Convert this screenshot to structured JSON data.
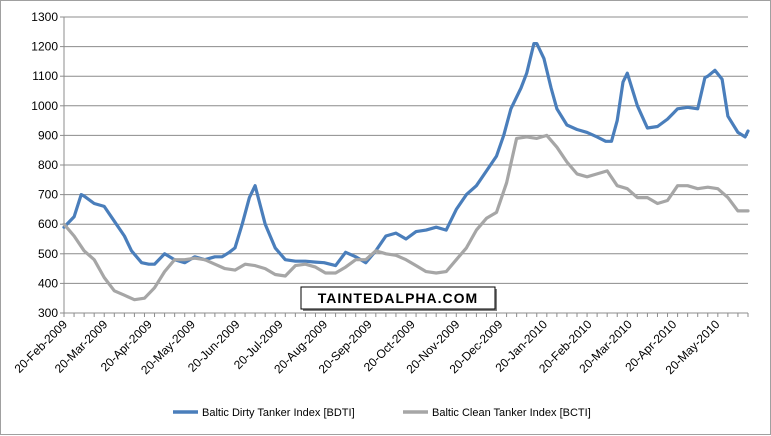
{
  "chart_data": {
    "type": "line",
    "title": "",
    "xlabel": "",
    "ylabel": "",
    "ylim": [
      300,
      1300
    ],
    "yticks": [
      300,
      400,
      500,
      600,
      700,
      800,
      900,
      1000,
      1100,
      1200,
      1300
    ],
    "xlim": [
      "2009-02-20",
      "2010-06-11"
    ],
    "xtick_dates": [
      "2009-02-20",
      "2009-03-20",
      "2009-04-20",
      "2009-05-20",
      "2009-06-20",
      "2009-07-20",
      "2009-08-20",
      "2009-09-20",
      "2009-10-20",
      "2009-11-20",
      "2009-12-20",
      "2010-01-20",
      "2010-02-20",
      "2010-03-20",
      "2010-04-20",
      "2010-05-20"
    ],
    "xtick_labels": [
      "20-Feb-2009",
      "20-Mar-2009",
      "20-Apr-2009",
      "20-May-2009",
      "20-Jun-2009",
      "20-Jul-2009",
      "20-Aug-2009",
      "20-Sep-2009",
      "20-Oct-2009",
      "20-Nov-2009",
      "20-Dec-2009",
      "20-Jan-2010",
      "20-Feb-2010",
      "20-Mar-2010",
      "20-Apr-2010",
      "20-May-2010"
    ],
    "grid": "horizontal",
    "legend_position": "bottom",
    "watermark": "TAINTEDALPHA.COM",
    "series": [
      {
        "name": "Baltic Dirty Tanker Index [BDTI]",
        "color": "#4a7ebb",
        "x": [
          "2009-02-20",
          "2009-02-27",
          "2009-03-04",
          "2009-03-06",
          "2009-03-13",
          "2009-03-20",
          "2009-03-27",
          "2009-04-03",
          "2009-04-08",
          "2009-04-15",
          "2009-04-20",
          "2009-04-24",
          "2009-05-01",
          "2009-05-08",
          "2009-05-15",
          "2009-05-22",
          "2009-05-29",
          "2009-06-05",
          "2009-06-10",
          "2009-06-15",
          "2009-06-19",
          "2009-06-24",
          "2009-06-29",
          "2009-07-03",
          "2009-07-10",
          "2009-07-17",
          "2009-07-24",
          "2009-07-31",
          "2009-08-07",
          "2009-08-14",
          "2009-08-20",
          "2009-08-28",
          "2009-09-04",
          "2009-09-11",
          "2009-09-18",
          "2009-09-25",
          "2009-10-02",
          "2009-10-09",
          "2009-10-16",
          "2009-10-23",
          "2009-10-30",
          "2009-11-06",
          "2009-11-13",
          "2009-11-20",
          "2009-11-27",
          "2009-12-04",
          "2009-12-11",
          "2009-12-18",
          "2009-12-23",
          "2009-12-28",
          "2010-01-04",
          "2010-01-08",
          "2010-01-13",
          "2010-01-15",
          "2010-01-20",
          "2010-01-25",
          "2010-01-29",
          "2010-02-05",
          "2010-02-12",
          "2010-02-19",
          "2010-02-26",
          "2010-03-04",
          "2010-03-08",
          "2010-03-12",
          "2010-03-16",
          "2010-03-19",
          "2010-03-26",
          "2010-04-02",
          "2010-04-09",
          "2010-04-16",
          "2010-04-20",
          "2010-04-23",
          "2010-04-30",
          "2010-05-07",
          "2010-05-12",
          "2010-05-14",
          "2010-05-19",
          "2010-05-24",
          "2010-05-28",
          "2010-06-04",
          "2010-06-09",
          "2010-06-11"
        ],
        "y": [
          590,
          625,
          700,
          695,
          670,
          660,
          610,
          560,
          510,
          470,
          465,
          465,
          500,
          480,
          470,
          490,
          480,
          490,
          490,
          505,
          520,
          600,
          690,
          730,
          600,
          520,
          480,
          475,
          475,
          472,
          470,
          460,
          505,
          490,
          470,
          510,
          560,
          570,
          550,
          575,
          580,
          590,
          580,
          650,
          700,
          730,
          780,
          830,
          900,
          990,
          1060,
          1110,
          1210,
          1210,
          1160,
          1060,
          990,
          935,
          920,
          910,
          895,
          880,
          880,
          950,
          1080,
          1110,
          1000,
          925,
          930,
          955,
          975,
          990,
          995,
          990,
          1095,
          1100,
          1120,
          1090,
          965,
          910,
          895,
          915
        ]
      },
      {
        "name": "Baltic Clean Tanker Index [BCTI]",
        "color": "#a6a6a6",
        "x": [
          "2009-02-20",
          "2009-02-27",
          "2009-03-06",
          "2009-03-13",
          "2009-03-20",
          "2009-03-27",
          "2009-04-03",
          "2009-04-10",
          "2009-04-17",
          "2009-04-24",
          "2009-05-01",
          "2009-05-08",
          "2009-05-15",
          "2009-05-22",
          "2009-05-29",
          "2009-06-05",
          "2009-06-12",
          "2009-06-19",
          "2009-06-26",
          "2009-07-03",
          "2009-07-10",
          "2009-07-17",
          "2009-07-24",
          "2009-07-31",
          "2009-08-07",
          "2009-08-14",
          "2009-08-21",
          "2009-08-28",
          "2009-09-04",
          "2009-09-11",
          "2009-09-18",
          "2009-09-25",
          "2009-10-02",
          "2009-10-09",
          "2009-10-16",
          "2009-10-23",
          "2009-10-30",
          "2009-11-06",
          "2009-11-13",
          "2009-11-20",
          "2009-11-27",
          "2009-12-04",
          "2009-12-11",
          "2009-12-18",
          "2009-12-25",
          "2010-01-01",
          "2010-01-08",
          "2010-01-15",
          "2010-01-22",
          "2010-01-29",
          "2010-02-05",
          "2010-02-12",
          "2010-02-19",
          "2010-02-26",
          "2010-03-05",
          "2010-03-12",
          "2010-03-19",
          "2010-03-26",
          "2010-04-02",
          "2010-04-09",
          "2010-04-16",
          "2010-04-23",
          "2010-04-30",
          "2010-05-07",
          "2010-05-14",
          "2010-05-21",
          "2010-05-28",
          "2010-06-04",
          "2010-06-11"
        ],
        "y": [
          600,
          560,
          510,
          480,
          420,
          375,
          360,
          345,
          350,
          385,
          440,
          480,
          480,
          485,
          480,
          465,
          450,
          445,
          465,
          460,
          450,
          430,
          425,
          460,
          465,
          455,
          435,
          435,
          455,
          480,
          480,
          510,
          500,
          495,
          480,
          460,
          440,
          435,
          440,
          480,
          520,
          580,
          620,
          640,
          740,
          890,
          895,
          890,
          900,
          860,
          810,
          770,
          760,
          770,
          780,
          730,
          720,
          690,
          690,
          670,
          680,
          730,
          730,
          720,
          725,
          720,
          690,
          645,
          645
        ]
      }
    ]
  }
}
